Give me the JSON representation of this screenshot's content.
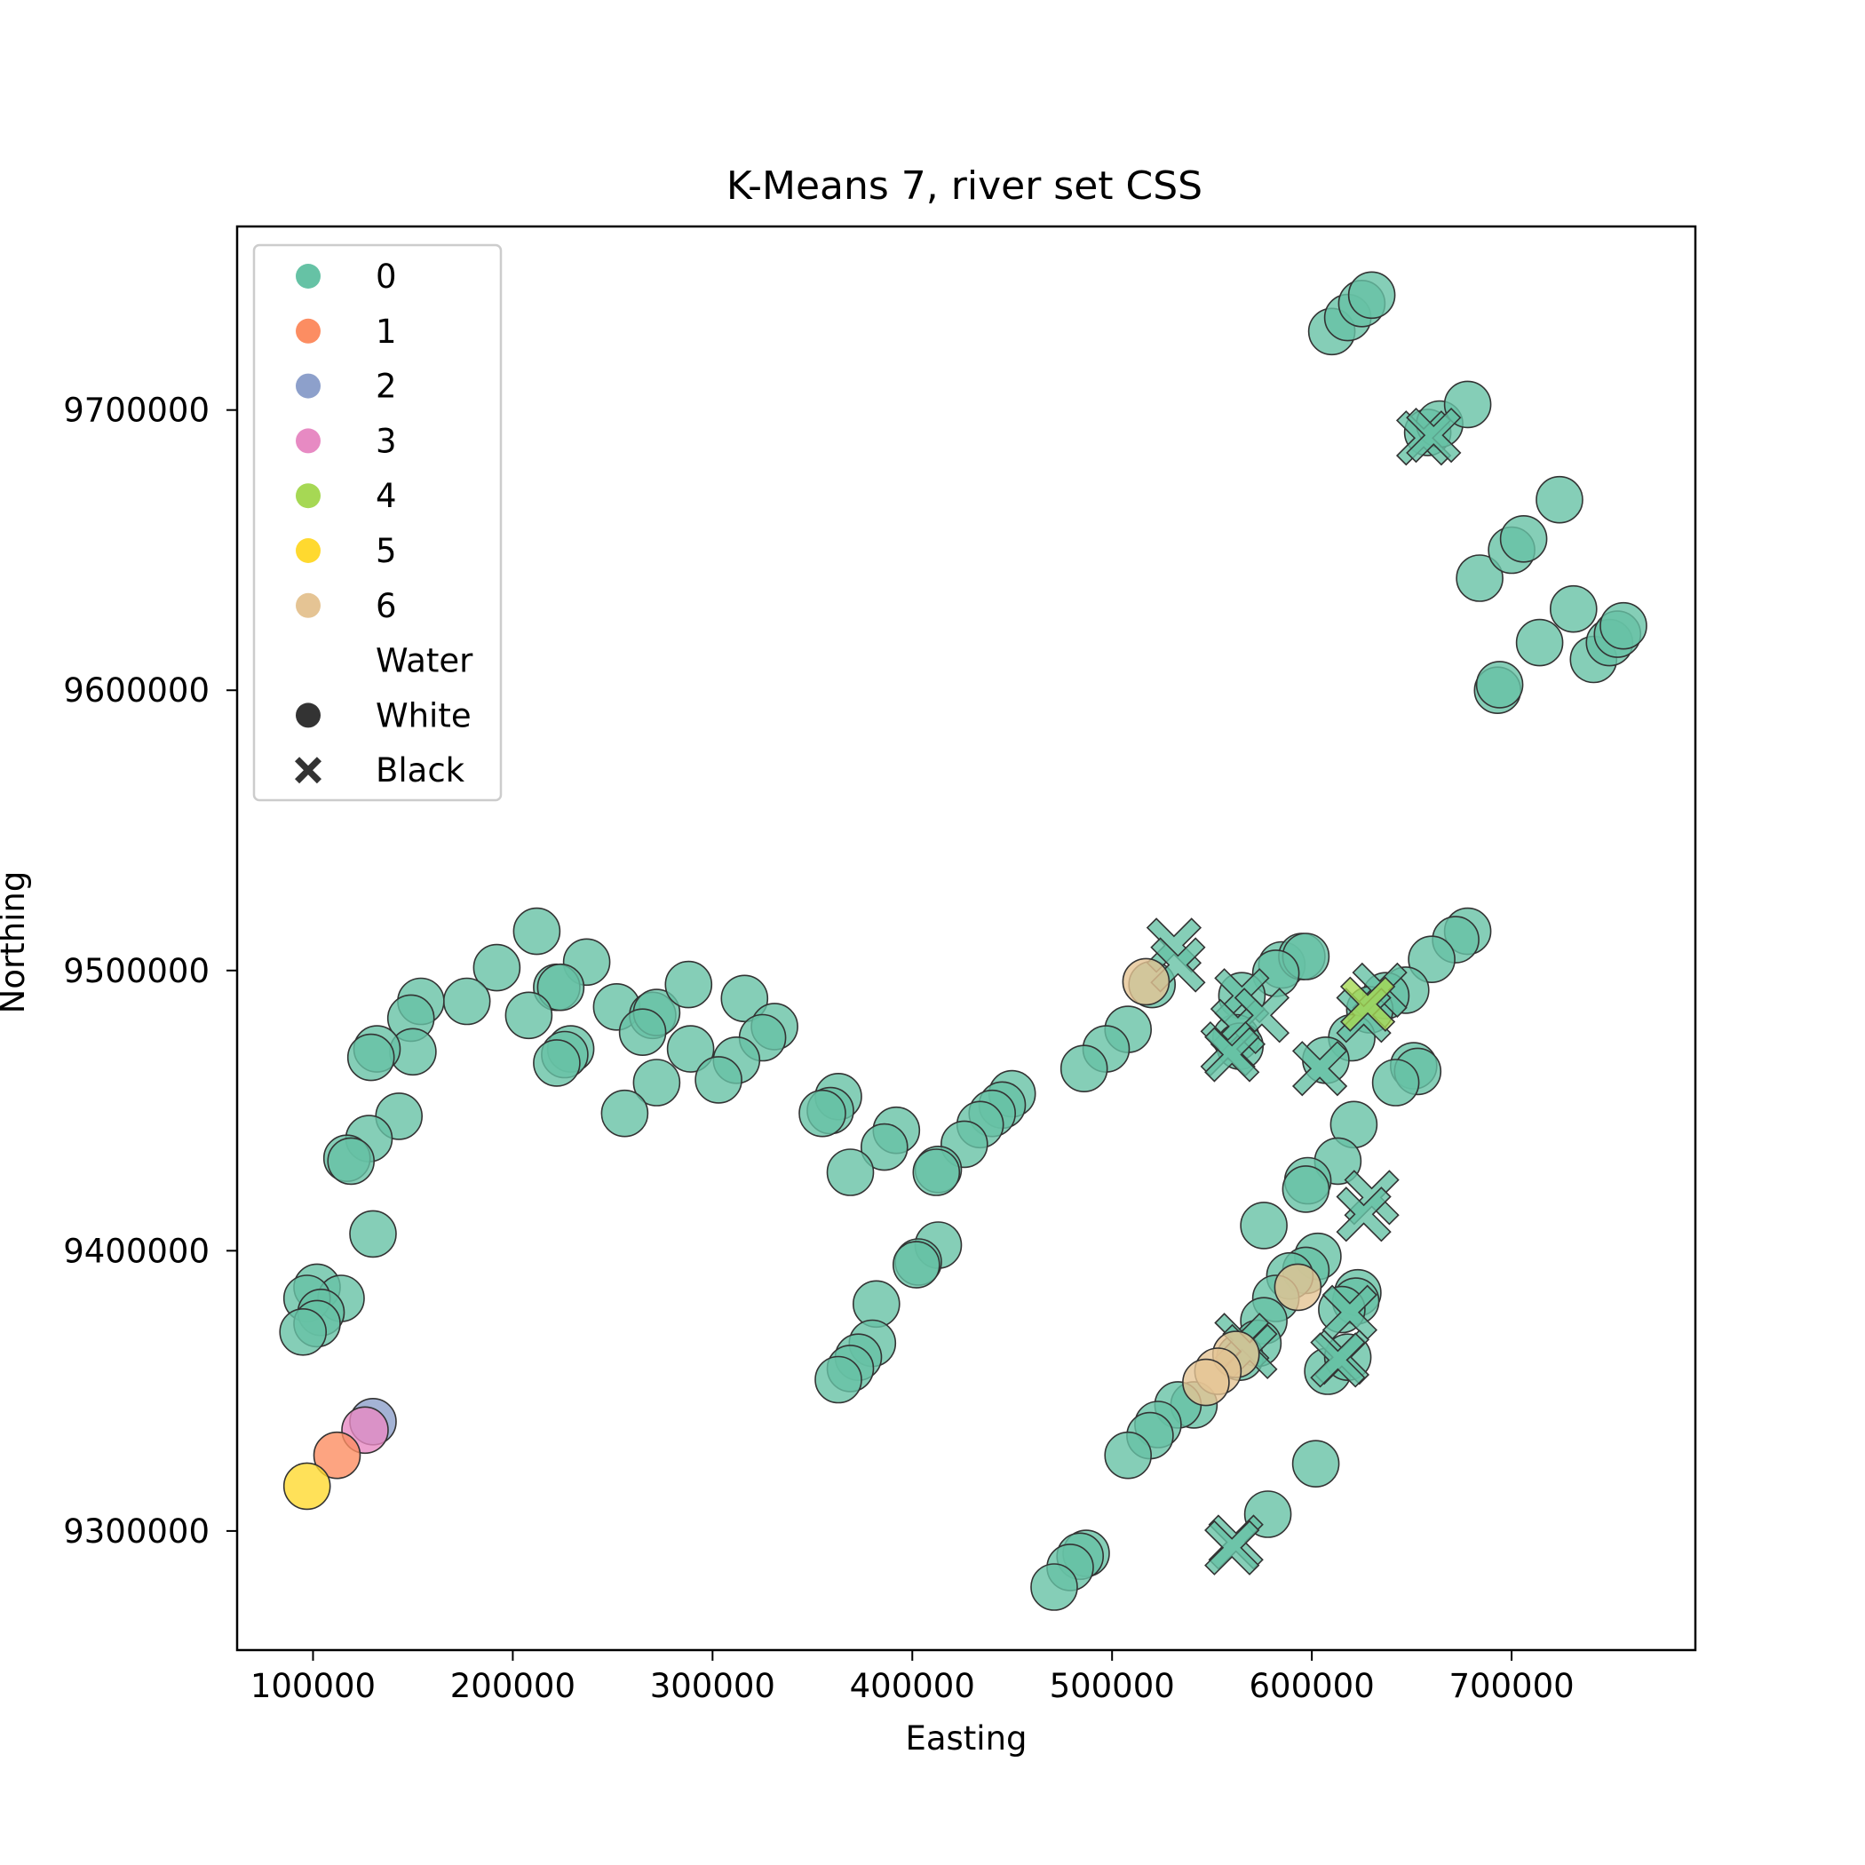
{
  "chart_data": {
    "type": "scatter",
    "title": "K-Means 7, river set CSS",
    "xlabel": "Easting",
    "ylabel": "Northing",
    "xlim": [
      62000,
      792000
    ],
    "ylim": [
      9257500,
      9765500
    ],
    "xticks": [
      100000,
      200000,
      300000,
      400000,
      500000,
      600000,
      700000
    ],
    "yticks": [
      9300000,
      9400000,
      9500000,
      9600000,
      9700000
    ],
    "xtick_labels": [
      "100000",
      "200000",
      "300000",
      "400000",
      "500000",
      "600000",
      "700000"
    ],
    "ytick_labels": [
      "9300000",
      "9400000",
      "9500000",
      "9600000",
      "9700000"
    ],
    "grid": false,
    "legend_position": "upper-left",
    "colors": {
      "0": "#66c2a5",
      "1": "#fc8d62",
      "2": "#8da0cb",
      "3": "#e78ac3",
      "4": "#a6d854",
      "5": "#ffd92f",
      "6": "#e5c494",
      "marker": "#333333"
    },
    "legend": {
      "hue_entries": [
        "0",
        "1",
        "2",
        "3",
        "4",
        "5",
        "6"
      ],
      "style_title": "Water",
      "style_entries": [
        {
          "label": "White",
          "marker": "circle"
        },
        {
          "label": "Black",
          "marker": "x"
        }
      ]
    },
    "series": [
      {
        "cluster": "0",
        "water": "White",
        "points": [
          [
            610000,
            9728000
          ],
          [
            618000,
            9733000
          ],
          [
            625000,
            9738000
          ],
          [
            630000,
            9741000
          ],
          [
            658000,
            9692000
          ],
          [
            664000,
            9695000
          ],
          [
            678000,
            9702000
          ],
          [
            724000,
            9668000
          ],
          [
            684000,
            9640000
          ],
          [
            700000,
            9650000
          ],
          [
            706000,
            9654000
          ],
          [
            693000,
            9600000
          ],
          [
            694000,
            9602000
          ],
          [
            714000,
            9617000
          ],
          [
            731000,
            9629000
          ],
          [
            741000,
            9611000
          ],
          [
            749000,
            9617000
          ],
          [
            753000,
            9620000
          ],
          [
            756000,
            9623000
          ],
          [
            678000,
            9514000
          ],
          [
            672000,
            9511000
          ],
          [
            660000,
            9504000
          ],
          [
            647000,
            9493000
          ],
          [
            637000,
            9491000
          ],
          [
            629000,
            9486000
          ],
          [
            620000,
            9476000
          ],
          [
            607000,
            9468000
          ],
          [
            651000,
            9466000
          ],
          [
            653000,
            9464000
          ],
          [
            642000,
            9460000
          ],
          [
            585000,
            9502000
          ],
          [
            595000,
            9505000
          ],
          [
            597000,
            9505000
          ],
          [
            582000,
            9499000
          ],
          [
            565000,
            9491000
          ],
          [
            562000,
            9476000
          ],
          [
            564000,
            9473000
          ],
          [
            520000,
            9495000
          ],
          [
            508000,
            9479000
          ],
          [
            497000,
            9472000
          ],
          [
            486000,
            9465000
          ],
          [
            450000,
            9456000
          ],
          [
            445000,
            9452000
          ],
          [
            440000,
            9449000
          ],
          [
            434000,
            9445000
          ],
          [
            426000,
            9438000
          ],
          [
            413000,
            9429000
          ],
          [
            412000,
            9428000
          ],
          [
            392000,
            9443000
          ],
          [
            386000,
            9437000
          ],
          [
            369000,
            9428000
          ],
          [
            363000,
            9455000
          ],
          [
            359000,
            9450000
          ],
          [
            355000,
            9449000
          ],
          [
            413000,
            9402000
          ],
          [
            403000,
            9396000
          ],
          [
            402000,
            9395000
          ],
          [
            382000,
            9381000
          ],
          [
            380000,
            9367000
          ],
          [
            373000,
            9362000
          ],
          [
            369000,
            9358000
          ],
          [
            363000,
            9354000
          ],
          [
            621000,
            9445000
          ],
          [
            613000,
            9432000
          ],
          [
            598000,
            9425000
          ],
          [
            597000,
            9422000
          ],
          [
            576000,
            9409000
          ],
          [
            603000,
            9398000
          ],
          [
            597000,
            9393000
          ],
          [
            589000,
            9391000
          ],
          [
            582000,
            9383000
          ],
          [
            576000,
            9375000
          ],
          [
            623000,
            9385000
          ],
          [
            622000,
            9382000
          ],
          [
            615000,
            9379000
          ],
          [
            608000,
            9357000
          ],
          [
            618000,
            9362000
          ],
          [
            573000,
            9367000
          ],
          [
            564000,
            9362000
          ],
          [
            541000,
            9345000
          ],
          [
            533000,
            9345000
          ],
          [
            523000,
            9338000
          ],
          [
            519000,
            9334000
          ],
          [
            508000,
            9327000
          ],
          [
            602000,
            9324000
          ],
          [
            578000,
            9306000
          ],
          [
            487000,
            9292000
          ],
          [
            484000,
            9291000
          ],
          [
            479000,
            9287000
          ],
          [
            471000,
            9280000
          ],
          [
            212000,
            9514000
          ],
          [
            192000,
            9501000
          ],
          [
            177000,
            9489000
          ],
          [
            154000,
            9489000
          ],
          [
            149000,
            9483000
          ],
          [
            150000,
            9471000
          ],
          [
            132000,
            9472000
          ],
          [
            129000,
            9469000
          ],
          [
            143000,
            9448000
          ],
          [
            128000,
            9440000
          ],
          [
            117000,
            9433000
          ],
          [
            119000,
            9432000
          ],
          [
            130000,
            9406000
          ],
          [
            237000,
            9503000
          ],
          [
            222000,
            9494000
          ],
          [
            224000,
            9494000
          ],
          [
            208000,
            9484000
          ],
          [
            229000,
            9472000
          ],
          [
            226000,
            9470000
          ],
          [
            222000,
            9467000
          ],
          [
            252000,
            9487000
          ],
          [
            270000,
            9484000
          ],
          [
            272000,
            9485000
          ],
          [
            265000,
            9478000
          ],
          [
            288000,
            9495000
          ],
          [
            289000,
            9472000
          ],
          [
            272000,
            9460000
          ],
          [
            256000,
            9449000
          ],
          [
            316000,
            9490000
          ],
          [
            331000,
            9480000
          ],
          [
            325000,
            9476000
          ],
          [
            312000,
            9468000
          ],
          [
            303000,
            9461000
          ],
          [
            102000,
            9387000
          ],
          [
            114000,
            9383000
          ],
          [
            97000,
            9383000
          ],
          [
            104000,
            9378000
          ],
          [
            102000,
            9374000
          ],
          [
            95000,
            9371000
          ]
        ]
      },
      {
        "cluster": "0",
        "water": "Black",
        "points": [
          [
            656000,
            9690000
          ],
          [
            661000,
            9691000
          ],
          [
            531000,
            9509000
          ],
          [
            533000,
            9502000
          ],
          [
            565000,
            9491000
          ],
          [
            563000,
            9480000
          ],
          [
            575000,
            9484000
          ],
          [
            558000,
            9472000
          ],
          [
            560000,
            9470000
          ],
          [
            604000,
            9465000
          ],
          [
            634000,
            9493000
          ],
          [
            626000,
            9484000
          ],
          [
            630000,
            9419000
          ],
          [
            626000,
            9413000
          ],
          [
            619000,
            9378000
          ],
          [
            615000,
            9362000
          ],
          [
            613000,
            9361000
          ],
          [
            565000,
            9368000
          ],
          [
            569000,
            9364000
          ],
          [
            562000,
            9296000
          ],
          [
            560000,
            9294000
          ]
        ]
      },
      {
        "cluster": "4",
        "water": "Black",
        "points": [
          [
            628000,
            9488000
          ]
        ]
      },
      {
        "cluster": "6",
        "water": "White",
        "points": [
          [
            517000,
            9496000
          ],
          [
            593000,
            9387000
          ],
          [
            562000,
            9363000
          ],
          [
            553000,
            9357000
          ],
          [
            547000,
            9353000
          ]
        ]
      },
      {
        "cluster": "2",
        "water": "White",
        "points": [
          [
            130000,
            9339000
          ]
        ]
      },
      {
        "cluster": "3",
        "water": "White",
        "points": [
          [
            126000,
            9336000
          ]
        ]
      },
      {
        "cluster": "1",
        "water": "White",
        "points": [
          [
            112000,
            9327000
          ]
        ]
      },
      {
        "cluster": "5",
        "water": "White",
        "points": [
          [
            97000,
            9316000
          ]
        ]
      }
    ]
  }
}
